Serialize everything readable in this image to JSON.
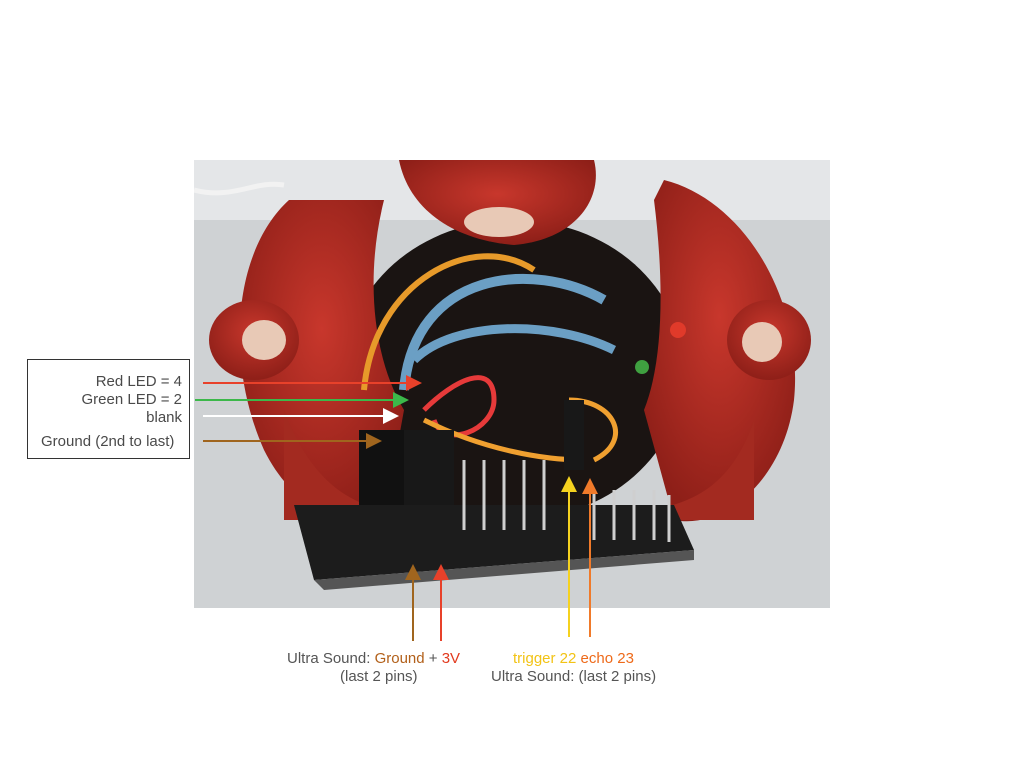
{
  "left_labels": {
    "red_led": "Red LED = 4",
    "green_led": "Green LED = 2",
    "blank": "blank",
    "ground": "Ground  (2nd to last)"
  },
  "bottom_left": {
    "prefix": "Ultra Sound:",
    "ground": "Ground",
    "plus": "+",
    "v3": "3V",
    "note": "(last 2 pins)"
  },
  "bottom_right": {
    "trigger": "trigger 22",
    "echo": "echo 23",
    "note": "Ultra Sound: (last 2 pins)"
  },
  "colors": {
    "red_arrow": "#e8412a",
    "green_arrow": "#3cb84a",
    "white_arrow": "#ffffff",
    "ground_arrow": "#a0651e",
    "v3_arrow": "#e8412a",
    "trigger_arrow": "#f5d21f",
    "echo_arrow": "#f07a2a",
    "ground_text": "#b2601a",
    "v3_text": "#e23a1e",
    "trigger_text": "#f2c315",
    "echo_text": "#ee6a1a"
  }
}
